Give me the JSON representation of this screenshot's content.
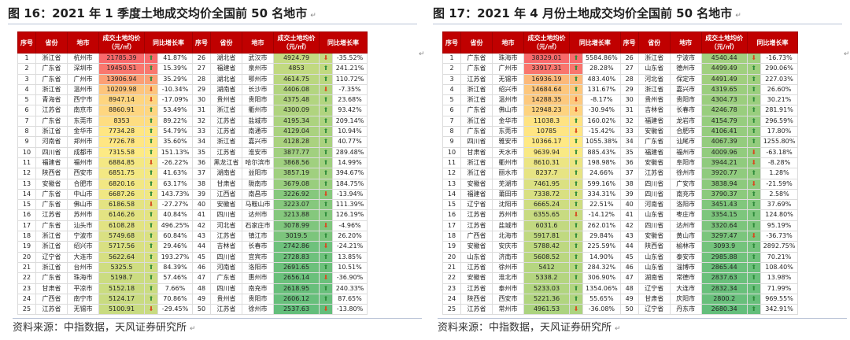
{
  "left": {
    "title": "图 16：2021 年 1 季度土地成交均价全国前 50 名地市",
    "header": [
      "序号",
      "省份",
      "地市",
      "成交土地均价\n（元/㎡）",
      "同比增长率",
      "序号",
      "省份",
      "地市",
      "成交土地均价\n（元/㎡）",
      "同比增长率"
    ],
    "rows": [
      [
        "1",
        "浙江省",
        "杭州市",
        "21785.39",
        "41.87%",
        "26",
        "湖北省",
        "武汉市",
        "4924.79",
        "-35.52%"
      ],
      [
        "2",
        "广东省",
        "深圳市",
        "19450.51",
        "15.39%",
        "27",
        "福建省",
        "泉州市",
        "4853",
        "241.21%"
      ],
      [
        "3",
        "广东省",
        "广州市",
        "13906.94",
        "35.29%",
        "28",
        "湖北省",
        "鄂州市",
        "4614.75",
        "110.72%"
      ],
      [
        "4",
        "浙江省",
        "温州市",
        "10209.98",
        "-10.34%",
        "29",
        "湖南省",
        "长沙市",
        "4406.08",
        "-7.35%"
      ],
      [
        "5",
        "青海省",
        "西宁市",
        "8947.14",
        "-17.09%",
        "30",
        "贵州省",
        "贵阳市",
        "4375.48",
        "23.68%"
      ],
      [
        "6",
        "江苏省",
        "南京市",
        "8860.91",
        "53.49%",
        "31",
        "浙江省",
        "衢州市",
        "4300.09",
        "93.42%"
      ],
      [
        "7",
        "广东省",
        "东莞市",
        "8353",
        "89.22%",
        "32",
        "江苏省",
        "盐城市",
        "4195.34",
        "209.14%"
      ],
      [
        "8",
        "浙江省",
        "金华市",
        "7734.28",
        "54.79%",
        "33",
        "江苏省",
        "南通市",
        "4129.04",
        "10.94%"
      ],
      [
        "9",
        "河南省",
        "郑州市",
        "7726.78",
        "35.60%",
        "34",
        "浙江省",
        "嘉兴市",
        "4128.28",
        "40.77%"
      ],
      [
        "10",
        "四川省",
        "成都市",
        "7315.58",
        "151.13%",
        "35",
        "江苏省",
        "淮安市",
        "3877.77",
        "289.48%"
      ],
      [
        "11",
        "福建省",
        "福州市",
        "6884.85",
        "-26.22%",
        "36",
        "黑龙江省",
        "哈尔滨市",
        "3868.56",
        "14.99%"
      ],
      [
        "12",
        "陕西省",
        "西安市",
        "6851.75",
        "41.63%",
        "37",
        "湖南省",
        "益阳市",
        "3857.19",
        "394.67%"
      ],
      [
        "13",
        "安徽省",
        "合肥市",
        "6820.16",
        "63.17%",
        "38",
        "甘肃省",
        "陇南市",
        "3679.08",
        "184.75%"
      ],
      [
        "14",
        "广东省",
        "中山市",
        "6687.26",
        "143.73%",
        "39",
        "江西省",
        "南昌市",
        "3226.92",
        "-13.94%"
      ],
      [
        "15",
        "广东省",
        "佛山市",
        "6186.58",
        "-27.27%",
        "40",
        "安徽省",
        "马鞍山市",
        "3223.07",
        "111.39%"
      ],
      [
        "16",
        "江苏省",
        "苏州市",
        "6146.26",
        "40.84%",
        "41",
        "四川省",
        "达州市",
        "3213.88",
        "126.19%"
      ],
      [
        "17",
        "广东省",
        "汕头市",
        "6108.28",
        "496.25%",
        "42",
        "河北省",
        "石家庄市",
        "3078.99",
        "-4.96%"
      ],
      [
        "18",
        "浙江省",
        "宁波市",
        "5749.68",
        "60.84%",
        "43",
        "江苏省",
        "镇江市",
        "3019.5",
        "26.20%"
      ],
      [
        "19",
        "浙江省",
        "绍兴市",
        "5717.56",
        "29.46%",
        "44",
        "吉林省",
        "长春市",
        "2742.86",
        "-24.21%"
      ],
      [
        "20",
        "辽宁省",
        "大连市",
        "5622.64",
        "193.27%",
        "45",
        "四川省",
        "宜宾市",
        "2728.83",
        "13.85%"
      ],
      [
        "21",
        "浙江省",
        "台州市",
        "5325.5",
        "84.39%",
        "46",
        "河南省",
        "洛阳市",
        "2691.65",
        "10.51%"
      ],
      [
        "22",
        "广东省",
        "珠海市",
        "5198.7",
        "57.46%",
        "47",
        "广东省",
        "惠州市",
        "2656.14",
        "-36.90%"
      ],
      [
        "23",
        "甘肃省",
        "平凉市",
        "5152.18",
        "7.66%",
        "48",
        "四川省",
        "南充市",
        "2618.95",
        "240.33%"
      ],
      [
        "24",
        "广西省",
        "南宁市",
        "5124.17",
        "70.86%",
        "49",
        "贵州省",
        "贵阳市",
        "2606.12",
        "87.65%"
      ],
      [
        "25",
        "江苏省",
        "无锡市",
        "5100.91",
        "-29.45%",
        "50",
        "江苏省",
        "徐州市",
        "2537.63",
        "-13.80%"
      ]
    ]
  },
  "right": {
    "title": "图 17：2021 年 4 月份土地成交均价全国前 50 名地市",
    "header": [
      "序号",
      "省份",
      "地市",
      "成交土地均价\n（元/㎡）",
      "同比增长率",
      "序号",
      "省份",
      "地市",
      "成交土地均价\n（元/㎡）",
      "同比增长率"
    ],
    "rows": [
      [
        "1",
        "广东省",
        "珠海市",
        "38329.01",
        "5584.86%",
        "26",
        "浙江省",
        "宁波市",
        "4540.44",
        "-16.73%"
      ],
      [
        "2",
        "广东省",
        "广州市",
        "33917.31",
        "28.28%",
        "27",
        "山东省",
        "德州市",
        "4499.49",
        "290.06%"
      ],
      [
        "3",
        "江苏省",
        "无锡市",
        "16936.19",
        "483.40%",
        "28",
        "河北省",
        "保定市",
        "4491.49",
        "227.03%"
      ],
      [
        "4",
        "浙江省",
        "绍兴市",
        "14684.64",
        "131.67%",
        "29",
        "浙江省",
        "嘉兴市",
        "4319.65",
        "26.60%"
      ],
      [
        "5",
        "浙江省",
        "温州市",
        "14288.35",
        "-8.17%",
        "30",
        "贵州省",
        "贵阳市",
        "4304.73",
        "30.21%"
      ],
      [
        "6",
        "广东省",
        "佛山市",
        "12948.23",
        "-30.94%",
        "31",
        "吉林省",
        "长春市",
        "4246.78",
        "281.91%"
      ],
      [
        "7",
        "浙江省",
        "金华市",
        "11038.3",
        "160.02%",
        "32",
        "福建省",
        "龙岩市",
        "4154.79",
        "296.59%"
      ],
      [
        "8",
        "广东省",
        "东莞市",
        "10785",
        "-15.42%",
        "33",
        "安徽省",
        "合肥市",
        "4106.41",
        "17.80%"
      ],
      [
        "9",
        "四川省",
        "雅安市",
        "10366.17",
        "1055.38%",
        "34",
        "广东省",
        "汕尾市",
        "4067.39",
        "1255.80%"
      ],
      [
        "10",
        "甘肃省",
        "天水市",
        "9639.94",
        "885.43%",
        "35",
        "福建省",
        "福州市",
        "4009.96",
        "-63.18%"
      ],
      [
        "11",
        "浙江省",
        "衢州市",
        "8610.31",
        "198.98%",
        "36",
        "安徽省",
        "阜阳市",
        "3944.21",
        "-8.28%"
      ],
      [
        "12",
        "浙江省",
        "丽水市",
        "8237.7",
        "24.66%",
        "37",
        "江苏省",
        "徐州市",
        "3920.77",
        "1.28%"
      ],
      [
        "13",
        "安徽省",
        "芜湖市",
        "7461.95",
        "599.16%",
        "38",
        "四川省",
        "广安市",
        "3838.94",
        "-21.59%"
      ],
      [
        "14",
        "福建省",
        "莆田市",
        "7338.72",
        "334.31%",
        "39",
        "四川省",
        "南充市",
        "3790.37",
        "2.58%"
      ],
      [
        "15",
        "辽宁省",
        "沈阳市",
        "6665.24",
        "22.51%",
        "40",
        "河南省",
        "洛阳市",
        "3451.43",
        "37.69%"
      ],
      [
        "16",
        "江苏省",
        "苏州市",
        "6355.65",
        "-14.12%",
        "41",
        "山东省",
        "枣庄市",
        "3354.15",
        "124.80%"
      ],
      [
        "17",
        "江苏省",
        "盐城市",
        "6031.6",
        "262.01%",
        "42",
        "四川省",
        "达州市",
        "3320.64",
        "95.19%"
      ],
      [
        "18",
        "广西省",
        "北海市",
        "5917.81",
        "29.84%",
        "43",
        "安徽省",
        "黄山市",
        "3297.47",
        "-36.73%"
      ],
      [
        "19",
        "安徽省",
        "安庆市",
        "5788.42",
        "225.59%",
        "44",
        "陕西省",
        "榆林市",
        "3093.9",
        "2892.75%"
      ],
      [
        "20",
        "山东省",
        "济南市",
        "5608.52",
        "14.90%",
        "45",
        "山东省",
        "泰安市",
        "2985.88",
        "70.21%"
      ],
      [
        "21",
        "江苏省",
        "徐州市",
        "5412",
        "284.32%",
        "46",
        "山东省",
        "淄博市",
        "2865.44",
        "108.40%"
      ],
      [
        "22",
        "安徽省",
        "淮北市",
        "5338.2",
        "306.90%",
        "47",
        "湖南省",
        "常德市",
        "2837.63",
        "13.98%"
      ],
      [
        "23",
        "江苏省",
        "泰州市",
        "5233.03",
        "1354.06%",
        "48",
        "辽宁省",
        "大连市",
        "2832.34",
        "71.99%"
      ],
      [
        "24",
        "陕西省",
        "西安市",
        "5221.36",
        "55.65%",
        "49",
        "甘肃省",
        "庆阳市",
        "2800.2",
        "969.55%"
      ],
      [
        "25",
        "江苏省",
        "常州市",
        "4961.53",
        "-36.08%",
        "50",
        "辽宁省",
        "丹东市",
        "2680.34",
        "342.91%"
      ]
    ]
  },
  "source": "资料来源：中指数据，天风证券研究所",
  "para_mark": "↵",
  "colors": {
    "header_bg": "#c00000",
    "up_arrow": "#2e8b3a",
    "down_arrow": "#d64a20",
    "scale_high": "#f8696b",
    "scale_mid": "#ffeb84",
    "scale_low": "#63be7b"
  },
  "icons": {
    "up": "up-arrow-icon",
    "down": "down-arrow-icon"
  }
}
